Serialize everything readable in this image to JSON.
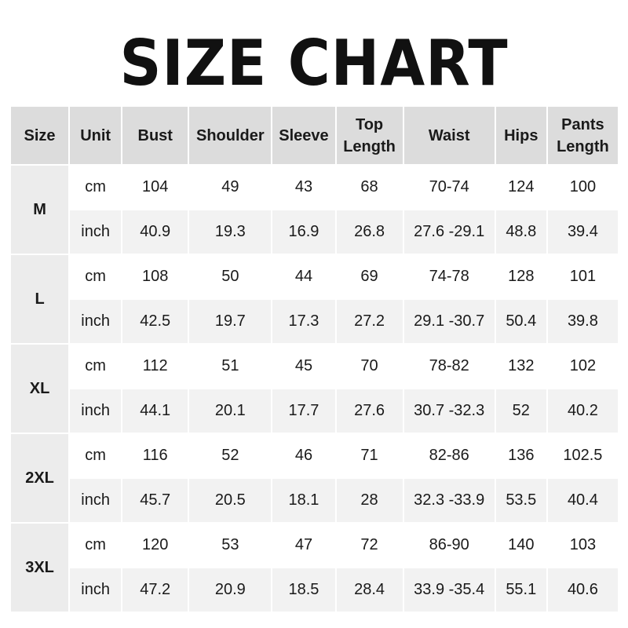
{
  "title": "SIZE CHART",
  "colors": {
    "header_bg": "#dcdcdc",
    "size_col_bg": "#ececec",
    "inch_row_bg": "#f2f2f2",
    "cm_row_bg": "#ffffff"
  },
  "table": {
    "headers": [
      "Size",
      "Unit",
      "Bust",
      "Shoulder",
      "Sleeve",
      "Top Length",
      "Waist",
      "Hips",
      "Pants Length"
    ],
    "groups": [
      {
        "size": "M",
        "rows": [
          [
            "cm",
            "104",
            "49",
            "43",
            "68",
            "70-74",
            "124",
            "100"
          ],
          [
            "inch",
            "40.9",
            "19.3",
            "16.9",
            "26.8",
            "27.6 -29.1",
            "48.8",
            "39.4"
          ]
        ]
      },
      {
        "size": "L",
        "rows": [
          [
            "cm",
            "108",
            "50",
            "44",
            "69",
            "74-78",
            "128",
            "101"
          ],
          [
            "inch",
            "42.5",
            "19.7",
            "17.3",
            "27.2",
            "29.1 -30.7",
            "50.4",
            "39.8"
          ]
        ]
      },
      {
        "size": "XL",
        "rows": [
          [
            "cm",
            "112",
            "51",
            "45",
            "70",
            "78-82",
            "132",
            "102"
          ],
          [
            "inch",
            "44.1",
            "20.1",
            "17.7",
            "27.6",
            "30.7 -32.3",
            "52",
            "40.2"
          ]
        ]
      },
      {
        "size": "2XL",
        "rows": [
          [
            "cm",
            "116",
            "52",
            "46",
            "71",
            "82-86",
            "136",
            "102.5"
          ],
          [
            "inch",
            "45.7",
            "20.5",
            "18.1",
            "28",
            "32.3 -33.9",
            "53.5",
            "40.4"
          ]
        ]
      },
      {
        "size": "3XL",
        "rows": [
          [
            "cm",
            "120",
            "53",
            "47",
            "72",
            "86-90",
            "140",
            "103"
          ],
          [
            "inch",
            "47.2",
            "20.9",
            "18.5",
            "28.4",
            "33.9 -35.4",
            "55.1",
            "40.6"
          ]
        ]
      }
    ]
  }
}
